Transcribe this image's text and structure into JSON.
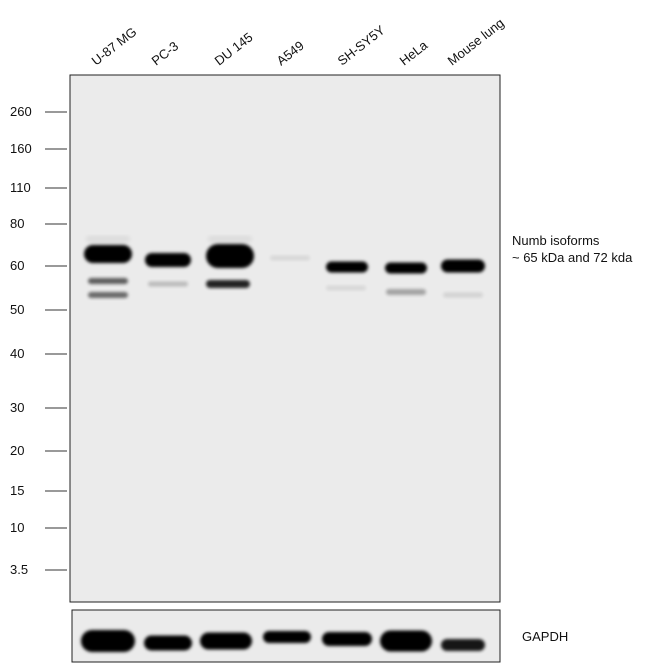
{
  "lanes": [
    "U-87 MG",
    "PC-3",
    "DU 145",
    "A549",
    "SH-SY5Y",
    "HeLa",
    "Mouse lung"
  ],
  "markers": [
    "260",
    "160",
    "110",
    "80",
    "60",
    "50",
    "40",
    "30",
    "20",
    "15",
    "10",
    "3.5"
  ],
  "annotation": {
    "line1": "Numb isoforms",
    "line2": "~ 65 kDa and 72 kda"
  },
  "loading_control": "GAPDH"
}
